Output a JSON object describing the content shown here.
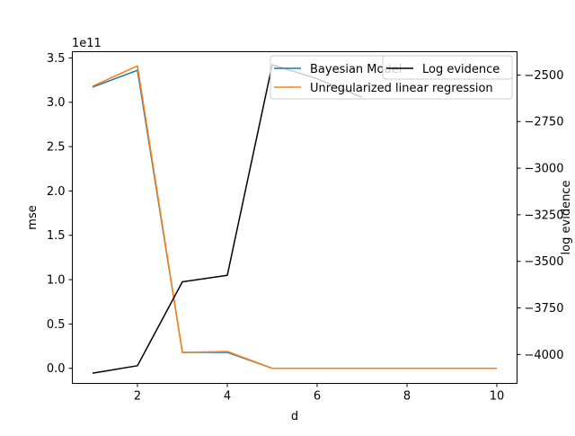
{
  "chart_data": {
    "type": "line",
    "xlabel": "d",
    "ylabel_left": "mse",
    "ylabel_right": "log evidence",
    "left_offset_text": "1e11",
    "x": [
      1,
      2,
      3,
      4,
      5,
      6,
      7,
      8,
      9,
      10
    ],
    "xlim": [
      0.55,
      10.45
    ],
    "xticks": [
      2,
      4,
      6,
      8,
      10
    ],
    "ylim_left": [
      -0.17,
      3.57
    ],
    "yticks_left": [
      0.0,
      0.5,
      1.0,
      1.5,
      2.0,
      2.5,
      3.0,
      3.5
    ],
    "ylim_right": [
      -4155,
      -2375
    ],
    "yticks_right": [
      -4000,
      -3750,
      -3500,
      -3250,
      -3000,
      -2750,
      -2500
    ],
    "grid": false,
    "series": [
      {
        "name": "Bayesian Model",
        "axis": "left",
        "color": "#1f77b4",
        "values": [
          3.17,
          3.36,
          0.18,
          0.18,
          0.0,
          0.0,
          0.0,
          0.0,
          0.0,
          0.0
        ]
      },
      {
        "name": "Unregularized linear regression",
        "axis": "left",
        "color": "#ff7f0e",
        "values": [
          3.18,
          3.41,
          0.18,
          0.19,
          0.0,
          0.0,
          0.0,
          0.0,
          0.0,
          0.0
        ]
      },
      {
        "name": "Log evidence",
        "axis": "right",
        "color": "#000000",
        "x": [
          1,
          2,
          3,
          4,
          5,
          6,
          7
        ],
        "values": [
          -4100,
          -4060,
          -3610,
          -3575,
          -2445,
          -2520,
          -2620
        ]
      }
    ],
    "legends": [
      {
        "placement": "top-center",
        "entries": [
          "Bayesian Model",
          "Unregularized linear regression"
        ]
      },
      {
        "placement": "top-right",
        "entries": [
          "Log evidence"
        ]
      }
    ]
  }
}
